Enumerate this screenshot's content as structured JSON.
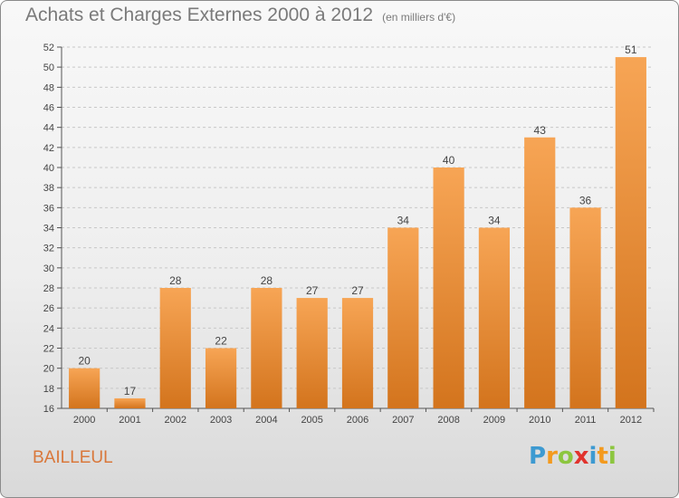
{
  "title": "Achats et Charges Externes 2000 à 2012",
  "subtitle": "(en milliers d'€)",
  "commune": "BAILLEUL",
  "logo": {
    "letters": [
      "P",
      "r",
      "o",
      "x",
      "i",
      "t",
      "i"
    ],
    "colors": [
      "#3d9ad1",
      "#f39a1e",
      "#8cc63f",
      "#e1332d",
      "#3d9ad1",
      "#f39a1e",
      "#8cc63f"
    ]
  },
  "colors": {
    "bar_top": "#f7a555",
    "bar_bottom": "#d3741d",
    "title": "#7a7a7a",
    "commune": "#d9773a"
  },
  "chart_data": {
    "type": "bar",
    "categories": [
      "2000",
      "2001",
      "2002",
      "2003",
      "2004",
      "2005",
      "2006",
      "2007",
      "2008",
      "2009",
      "2010",
      "2011",
      "2012"
    ],
    "values": [
      20,
      17,
      28,
      22,
      28,
      27,
      27,
      34,
      40,
      34,
      43,
      36,
      51
    ],
    "ylim": [
      16,
      52
    ],
    "yticks": [
      16,
      18,
      20,
      22,
      24,
      26,
      28,
      30,
      32,
      34,
      36,
      38,
      40,
      42,
      44,
      46,
      48,
      50,
      52
    ],
    "grid": true
  }
}
